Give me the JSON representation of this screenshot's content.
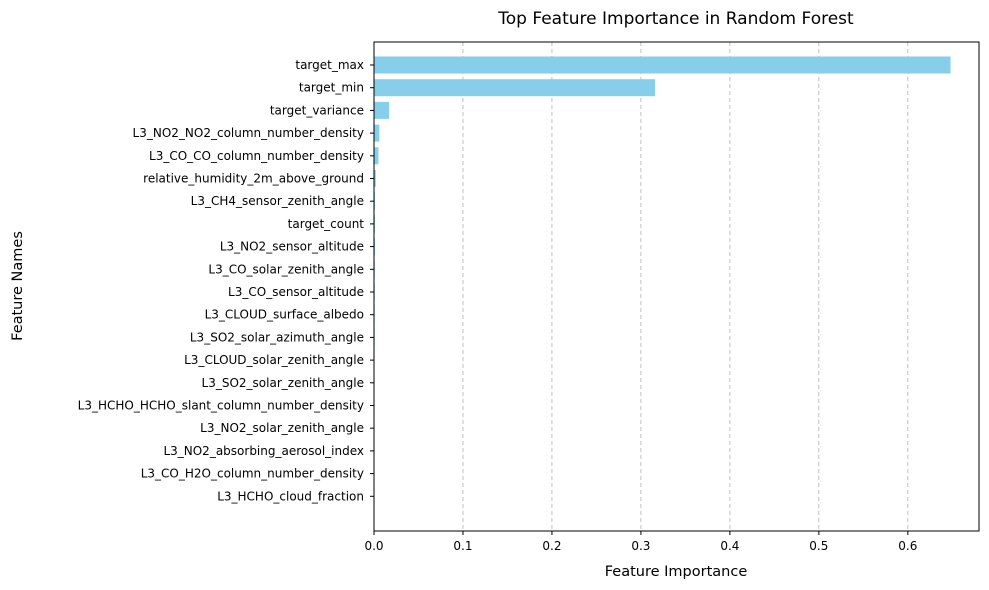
{
  "chart_data": {
    "type": "bar",
    "orientation": "horizontal",
    "title": "Top Feature Importance in Random Forest",
    "xlabel": "Feature Importance",
    "ylabel": "Feature Names",
    "xlim": [
      0,
      0.68
    ],
    "xticks": [
      0.0,
      0.1,
      0.2,
      0.3,
      0.4,
      0.5,
      0.6
    ],
    "xtick_labels": [
      "0.0",
      "0.1",
      "0.2",
      "0.3",
      "0.4",
      "0.5",
      "0.6"
    ],
    "grid": "x-dashed",
    "bar_color": "#87ceeb",
    "categories": [
      "target_max",
      "target_min",
      "target_variance",
      "L3_NO2_NO2_column_number_density",
      "L3_CO_CO_column_number_density",
      "relative_humidity_2m_above_ground",
      "L3_CH4_sensor_zenith_angle",
      "target_count",
      "L3_NO2_sensor_altitude",
      "L3_CO_solar_zenith_angle",
      "L3_CO_sensor_altitude",
      "L3_CLOUD_surface_albedo",
      "L3_SO2_solar_azimuth_angle",
      "L3_CLOUD_solar_zenith_angle",
      "L3_SO2_solar_zenith_angle",
      "L3_HCHO_HCHO_slant_column_number_density",
      "L3_NO2_solar_zenith_angle",
      "L3_NO2_absorbing_aerosol_index",
      "L3_CO_H2O_column_number_density",
      "L3_HCHO_cloud_fraction"
    ],
    "values": [
      0.648,
      0.316,
      0.017,
      0.006,
      0.005,
      0.002,
      0.001,
      0.001,
      0.001,
      0.0008,
      0.0008,
      0.0007,
      0.0007,
      0.0006,
      0.0006,
      0.0006,
      0.0005,
      0.0005,
      0.0005,
      0.0004
    ]
  }
}
